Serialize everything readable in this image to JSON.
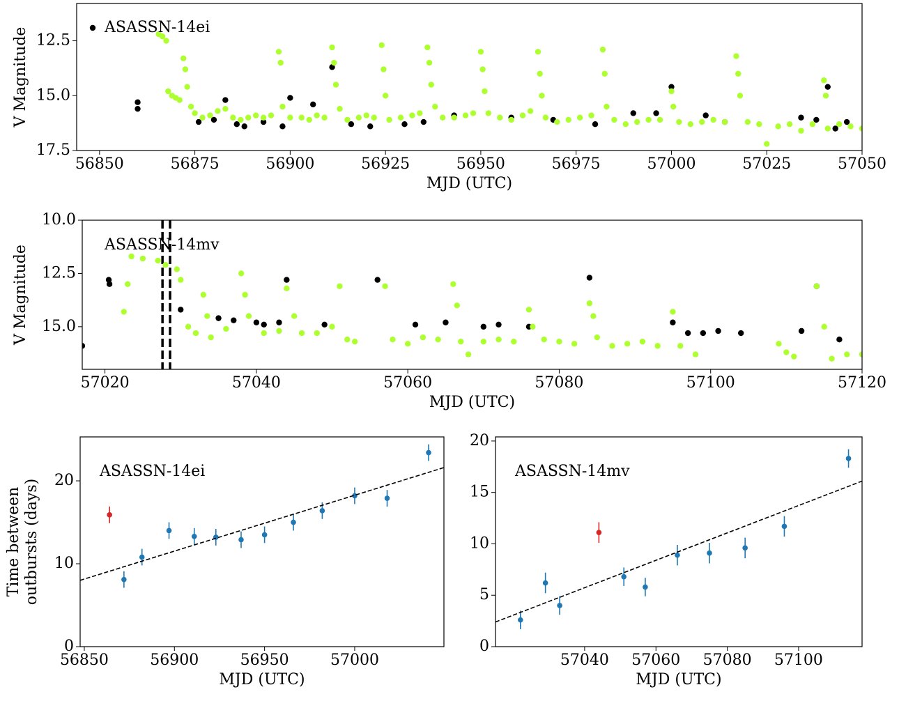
{
  "chart_data": [
    {
      "type": "scatter",
      "xlabel": "MJD (UTC)",
      "ylabel": "V Magnitude",
      "xlim": [
        56844,
        57050
      ],
      "ylim": [
        17.5,
        10.8
      ],
      "xticks": [
        56850,
        56875,
        56900,
        56925,
        56950,
        56975,
        57000,
        57025,
        57050
      ],
      "yticks": [
        12.5,
        {
          "value": 15,
          "label": "15.0"
        },
        17.5
      ],
      "legend": "upper left",
      "series": [
        {
          "name": "ASASSN-14ei",
          "color": "#000000",
          "x": [
            56860,
            56860,
            56876,
            56880,
            56883,
            56886,
            56888,
            56893,
            56898,
            56900,
            56906,
            56911,
            56916,
            56921,
            56930,
            56935,
            56943,
            56958,
            56969,
            56980,
            56990,
            56996,
            57000,
            57009,
            57014,
            57034,
            57038,
            57041,
            57043,
            57046
          ],
          "values": [
            15.3,
            15.6,
            16.2,
            16.1,
            15.2,
            16.3,
            16.4,
            16.2,
            16.4,
            15.1,
            15.4,
            13.7,
            16.3,
            16.4,
            16.3,
            16.2,
            15.9,
            16.0,
            16.1,
            16.3,
            15.8,
            15.8,
            14.6,
            15.9,
            16.2,
            16.0,
            16.1,
            14.6,
            16.5,
            16.2
          ]
        },
        {
          "color": "#adff2f",
          "x": [
            56865.5,
            56866.5,
            56867.5,
            56868,
            56869,
            56870,
            56871,
            56872,
            56872.5,
            56873,
            56874,
            56875,
            56877,
            56879,
            56881,
            56883,
            56885,
            56887,
            56889,
            56891,
            56893,
            56895,
            56897,
            56897.5,
            56898,
            56900,
            56903,
            56905,
            56907,
            56909,
            56911,
            56911.5,
            56912,
            56913,
            56915,
            56918,
            56920,
            56922,
            56924,
            56924.5,
            56925,
            56926,
            56929,
            56932,
            56934,
            56936,
            56936.5,
            56937,
            56938,
            56940,
            56943,
            56946,
            56948,
            56950,
            56950.5,
            56951,
            56952,
            56955,
            56958,
            56961,
            56963,
            56965,
            56965.5,
            56966,
            56967,
            56970,
            56973,
            56976,
            56979,
            56982,
            56982.5,
            56983,
            56985,
            56988,
            56991,
            56994,
            56997,
            57000,
            57000.5,
            57002,
            57005,
            57008,
            57011,
            57014,
            57017,
            57017.5,
            57018,
            57020,
            57023,
            57025,
            57028,
            57031,
            57034,
            57037,
            57040,
            57040.5,
            57041,
            57044,
            57047,
            57050
          ],
          "values": [
            12.2,
            12.3,
            12.5,
            14.8,
            15.0,
            15.1,
            15.2,
            13.3,
            13.8,
            14.6,
            15.5,
            15.8,
            16.0,
            15.9,
            15.7,
            15.6,
            16.0,
            16.1,
            16.0,
            15.9,
            16.0,
            15.9,
            13.0,
            13.5,
            15.5,
            16.0,
            16.0,
            16.1,
            15.9,
            16.0,
            12.8,
            13.5,
            14.5,
            15.6,
            16.1,
            16.0,
            15.9,
            16.0,
            12.7,
            13.8,
            15.0,
            16.1,
            16.0,
            15.9,
            15.8,
            12.8,
            13.5,
            14.5,
            15.5,
            16.0,
            16.0,
            15.9,
            15.8,
            13.0,
            13.8,
            14.8,
            15.8,
            16.0,
            16.1,
            15.9,
            15.7,
            13.0,
            14.0,
            15.0,
            16.0,
            16.2,
            16.1,
            16.0,
            15.9,
            12.9,
            14.0,
            15.5,
            16.1,
            16.3,
            16.2,
            16.1,
            16.1,
            14.8,
            15.5,
            16.2,
            16.3,
            16.2,
            16.1,
            16.2,
            13.2,
            14.0,
            15.0,
            16.2,
            16.3,
            17.2,
            16.4,
            16.3,
            16.6,
            16.3,
            14.3,
            15.0,
            16.5,
            16.3,
            16.4,
            16.5
          ]
        }
      ]
    },
    {
      "type": "scatter",
      "xlabel": "MJD (UTC)",
      "ylabel": "V Magnitude",
      "annotation": "ASASSN-14mv",
      "xlim": [
        57017,
        57120
      ],
      "ylim": [
        17.0,
        10.0
      ],
      "xticks": [
        57020,
        57040,
        57060,
        57080,
        57100,
        57120
      ],
      "yticks": [
        {
          "value": 10,
          "label": "10.0"
        },
        12.5,
        {
          "value": 15,
          "label": "15.0"
        }
      ],
      "vlines": [
        57027.6,
        57028.6
      ],
      "series": [
        {
          "color": "#000000",
          "x": [
            57017,
            57020.5,
            57020.6,
            57030,
            57035,
            57037,
            57040,
            57041,
            57043,
            57044,
            57049,
            57056,
            57061,
            57065,
            57070,
            57072,
            57076,
            57084,
            57095,
            57097,
            57099,
            57101,
            57104,
            57112,
            57114,
            57117
          ],
          "values": [
            15.9,
            12.8,
            13.0,
            14.2,
            14.6,
            14.7,
            14.8,
            14.9,
            14.8,
            12.8,
            14.9,
            12.8,
            14.9,
            14.8,
            15.0,
            14.9,
            15.0,
            12.7,
            14.8,
            15.3,
            15.3,
            15.2,
            15.3,
            15.2,
            13.1,
            15.6
          ]
        },
        {
          "color": "#adff2f",
          "x": [
            57022.5,
            57023,
            57023.5,
            57025,
            57027,
            57028,
            57029.5,
            57030,
            57031,
            57032,
            57033,
            57033.5,
            57034,
            57036,
            57038,
            57038.5,
            57039,
            57041,
            57043,
            57044,
            57045,
            57046,
            57048,
            57050,
            57051,
            57052,
            57053,
            57057,
            57058,
            57060,
            57062,
            57064,
            57066,
            57066.5,
            57067,
            57068,
            57070,
            57072,
            57074,
            57076,
            57076.5,
            57078,
            57080,
            57082,
            57084,
            57084.5,
            57085,
            57087,
            57089,
            57091,
            57093,
            57095,
            57096,
            57098,
            57109,
            57110,
            57111,
            57114,
            57115,
            57116,
            57118,
            57120
          ],
          "values": [
            14.3,
            13.0,
            11.7,
            11.8,
            11.9,
            12.1,
            12.3,
            12.8,
            15.0,
            15.3,
            13.5,
            14.5,
            15.5,
            15.1,
            12.5,
            13.5,
            14.5,
            15.3,
            15.2,
            13.2,
            14.5,
            15.3,
            15.3,
            15.0,
            13.1,
            15.6,
            15.7,
            13.1,
            15.6,
            15.8,
            15.5,
            15.6,
            13.0,
            14.0,
            15.7,
            16.3,
            15.7,
            15.6,
            15.7,
            14.2,
            15.0,
            15.6,
            15.7,
            15.8,
            13.9,
            14.5,
            15.5,
            15.9,
            15.8,
            15.7,
            15.9,
            14.3,
            15.9,
            16.3,
            15.8,
            16.2,
            16.4,
            13.1,
            15.0,
            16.5,
            16.3,
            16.3
          ]
        }
      ]
    },
    {
      "type": "errorbar",
      "xlabel": "MJD (UTC)",
      "ylabel": [
        "Time between",
        "outbursts (days)"
      ],
      "annotation": "ASASSN-14ei",
      "xlim": [
        56847.7,
        57049.5
      ],
      "ylim": [
        0,
        25.3
      ],
      "xticks": [
        56850,
        56900,
        56950,
        57000
      ],
      "yticks": [
        0,
        10,
        20
      ],
      "series": [
        {
          "color": "#1f77b4",
          "x": [
            56872,
            56882,
            56897,
            56911,
            56923,
            56937,
            56950,
            56966,
            56982,
            57000,
            57018,
            57041
          ],
          "values": [
            8.1,
            10.8,
            14.0,
            13.3,
            13.2,
            12.9,
            13.5,
            15.0,
            16.4,
            18.2,
            17.9,
            23.4
          ],
          "errors": [
            1.0,
            1.0,
            1.0,
            1.0,
            1.0,
            1.0,
            1.0,
            1.0,
            1.0,
            1.0,
            1.0,
            1.0
          ]
        },
        {
          "color": "#d62728",
          "x": [
            56864
          ],
          "values": [
            15.9
          ],
          "errors": [
            1.0
          ]
        },
        {
          "color": "#000000",
          "line": "dashed",
          "x": [
            56847.7,
            57049.5
          ],
          "values": [
            8.0,
            21.6
          ]
        }
      ]
    },
    {
      "type": "errorbar",
      "xlabel": "MJD (UTC)",
      "annotation": "ASASSN-14mv",
      "xlim": [
        57015,
        57117.8
      ],
      "ylim": [
        0,
        20.4
      ],
      "xticks": [
        57040,
        57060,
        57080,
        57100
      ],
      "yticks": [
        0,
        5,
        10,
        15,
        20
      ],
      "series": [
        {
          "color": "#1f77b4",
          "x": [
            57022,
            57029,
            57033,
            57051,
            57057,
            57066,
            57075,
            57085,
            57096,
            57114
          ],
          "values": [
            2.6,
            6.2,
            4.0,
            6.8,
            5.8,
            8.9,
            9.1,
            9.6,
            11.7,
            18.3
          ],
          "errors": [
            0.9,
            1.0,
            0.9,
            0.9,
            0.9,
            1.0,
            1.0,
            1.0,
            1.0,
            0.9
          ]
        },
        {
          "color": "#d62728",
          "x": [
            57044
          ],
          "values": [
            11.1
          ],
          "errors": [
            1.0
          ]
        },
        {
          "color": "#000000",
          "line": "dashed",
          "x": [
            57015,
            57117.8
          ],
          "values": [
            2.4,
            16.1
          ]
        }
      ]
    }
  ]
}
